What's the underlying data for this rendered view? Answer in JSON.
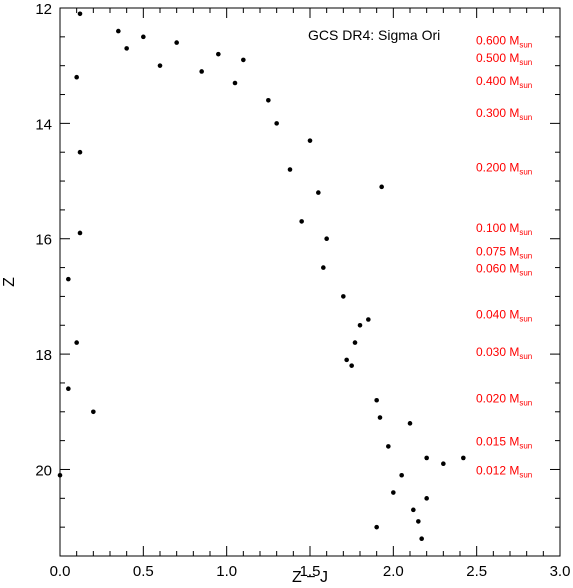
{
  "chart_data": {
    "type": "scatter",
    "title": "GCS DR4: Sigma Ori",
    "xlabel": "Z − J",
    "ylabel": "Z",
    "xlim": [
      0.0,
      3.0
    ],
    "ylim": [
      21.5,
      12.0
    ],
    "y_inverted": true,
    "grid": false,
    "x_ticks": [
      "0.0",
      "0.5",
      "1.0",
      "1.5",
      "2.0",
      "2.5",
      "3.0"
    ],
    "x_tick_values": [
      0.0,
      0.5,
      1.0,
      1.5,
      2.0,
      2.5,
      3.0
    ],
    "y_ticks": [
      "12",
      "14",
      "16",
      "18",
      "20"
    ],
    "y_tick_values": [
      12,
      14,
      16,
      18,
      20
    ],
    "marker_color": "#000000",
    "annotation_color": "#ff0000",
    "mass_labels": [
      {
        "label": "0.600 M",
        "sub": "sun",
        "z": 12.55
      },
      {
        "label": "0.500 M",
        "sub": "sun",
        "z": 12.85
      },
      {
        "label": "0.400 M",
        "sub": "sun",
        "z": 13.25
      },
      {
        "label": "0.300 M",
        "sub": "sun",
        "z": 13.8
      },
      {
        "label": "0.200 M",
        "sub": "sun",
        "z": 14.75
      },
      {
        "label": "0.100 M",
        "sub": "sun",
        "z": 15.8
      },
      {
        "label": "0.075 M",
        "sub": "sun",
        "z": 16.2
      },
      {
        "label": "0.060 M",
        "sub": "sun",
        "z": 16.5
      },
      {
        "label": "0.040 M",
        "sub": "sun",
        "z": 17.3
      },
      {
        "label": "0.030 M",
        "sub": "sun",
        "z": 17.95
      },
      {
        "label": "0.020 M",
        "sub": "sun",
        "z": 18.75
      },
      {
        "label": "0.015 M",
        "sub": "sun",
        "z": 19.5
      },
      {
        "label": "0.012 M",
        "sub": "sun",
        "z": 20.0
      }
    ],
    "series": [
      {
        "points": [
          [
            0.12,
            12.1
          ],
          [
            0.35,
            12.4
          ],
          [
            0.5,
            12.5
          ],
          [
            0.7,
            12.6
          ],
          [
            0.95,
            12.8
          ],
          [
            1.1,
            12.9
          ],
          [
            0.4,
            12.7
          ],
          [
            0.6,
            13.0
          ],
          [
            0.85,
            13.1
          ],
          [
            1.05,
            13.3
          ],
          [
            1.25,
            13.6
          ],
          [
            1.3,
            14.0
          ],
          [
            1.5,
            14.3
          ],
          [
            1.38,
            14.8
          ],
          [
            1.55,
            15.2
          ],
          [
            1.45,
            15.7
          ],
          [
            1.6,
            16.0
          ],
          [
            1.58,
            16.5
          ],
          [
            1.7,
            17.0
          ],
          [
            1.8,
            17.5
          ],
          [
            1.75,
            18.2
          ],
          [
            1.9,
            18.8
          ],
          [
            1.92,
            19.1
          ],
          [
            2.1,
            19.2
          ],
          [
            2.2,
            19.8
          ],
          [
            2.42,
            19.8
          ],
          [
            2.2,
            20.5
          ],
          [
            2.15,
            20.9
          ],
          [
            1.9,
            21.0
          ],
          [
            2.17,
            21.2
          ],
          [
            1.93,
            15.1
          ],
          [
            1.85,
            17.4
          ],
          [
            0.1,
            13.2
          ],
          [
            0.12,
            14.5
          ],
          [
            0.12,
            15.9
          ],
          [
            0.05,
            16.7
          ],
          [
            0.1,
            17.8
          ],
          [
            0.0,
            20.1
          ],
          [
            0.2,
            19.0
          ],
          [
            0.05,
            18.6
          ],
          [
            2.0,
            20.4
          ],
          [
            2.3,
            19.9
          ],
          [
            1.77,
            17.8
          ],
          [
            1.72,
            18.1
          ],
          [
            2.05,
            20.1
          ],
          [
            1.97,
            19.6
          ],
          [
            2.12,
            20.7
          ]
        ]
      }
    ]
  }
}
